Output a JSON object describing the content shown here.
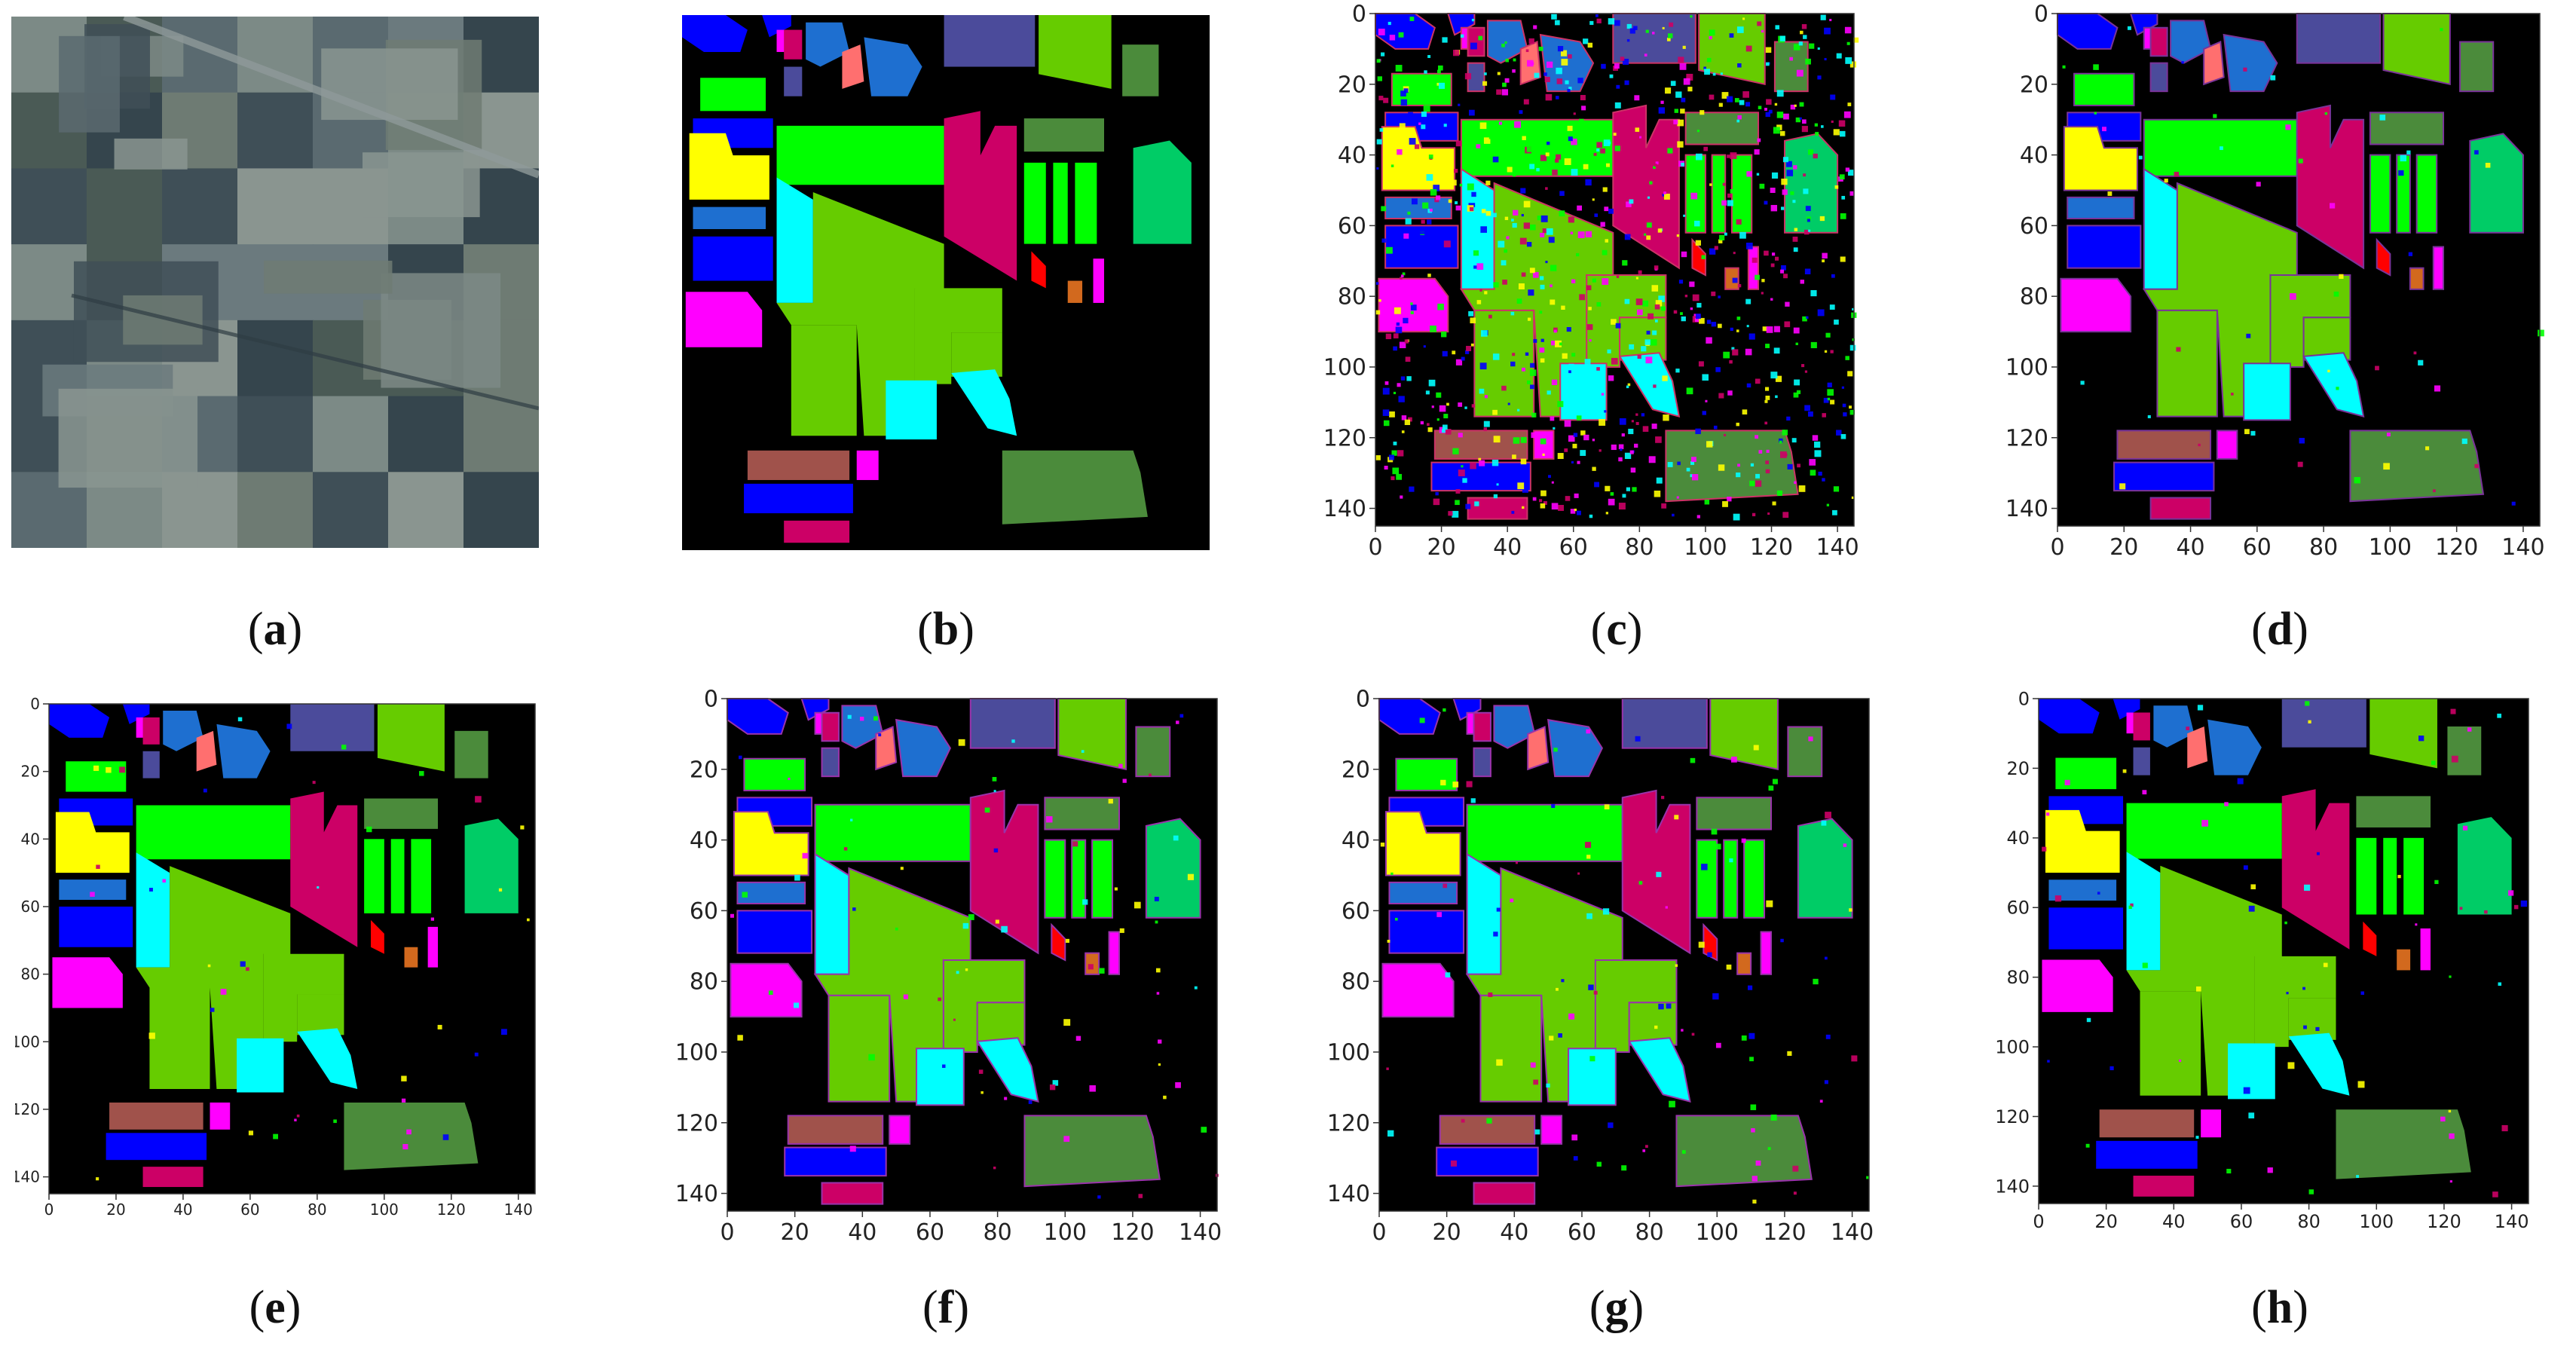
{
  "figure": {
    "panels": [
      {
        "id": "a",
        "kind": "photo",
        "caption_open": "(",
        "caption_letter": "a",
        "caption_close": ")"
      },
      {
        "id": "b",
        "kind": "map",
        "caption_open": "(",
        "caption_letter": "b",
        "caption_close": ")"
      },
      {
        "id": "c",
        "kind": "map-axes",
        "caption_open": "(",
        "caption_letter": "c",
        "caption_close": ")"
      },
      {
        "id": "d",
        "kind": "map-axes",
        "caption_open": "(",
        "caption_letter": "d",
        "caption_close": ")"
      },
      {
        "id": "e",
        "kind": "map-axes",
        "caption_open": "(",
        "caption_letter": "e",
        "caption_close": ")"
      },
      {
        "id": "f",
        "kind": "map-axes",
        "caption_open": "(",
        "caption_letter": "f",
        "caption_close": ")"
      },
      {
        "id": "g",
        "kind": "map-axes",
        "caption_open": "(",
        "caption_letter": "g",
        "caption_close": ")"
      },
      {
        "id": "h",
        "kind": "map-axes",
        "caption_open": "(",
        "caption_letter": "h",
        "caption_close": ")"
      }
    ],
    "x_ticks": [
      "0",
      "20",
      "40",
      "60",
      "80",
      "100",
      "120",
      "140"
    ],
    "y_ticks": [
      "0",
      "20",
      "40",
      "60",
      "80",
      "100",
      "120",
      "140"
    ],
    "class_colors": {
      "background": "#000000",
      "blue": "#0000ff",
      "light_green": "#00ff00",
      "lime": "#66cc00",
      "yellow": "#ffff00",
      "cyan": "#00ffff",
      "magenta": "#ff00ff",
      "crimson": "#cc0066",
      "slate": "#4b4b9b",
      "steel_blue": "#1e6fd0",
      "salmon": "#ff6f6f",
      "olive_green": "#4b8b3b",
      "teal_green": "#00cc66",
      "brown": "#a0524b",
      "orange": "#d2691e",
      "red": "#ff0000",
      "pink": "#ff3399"
    }
  }
}
